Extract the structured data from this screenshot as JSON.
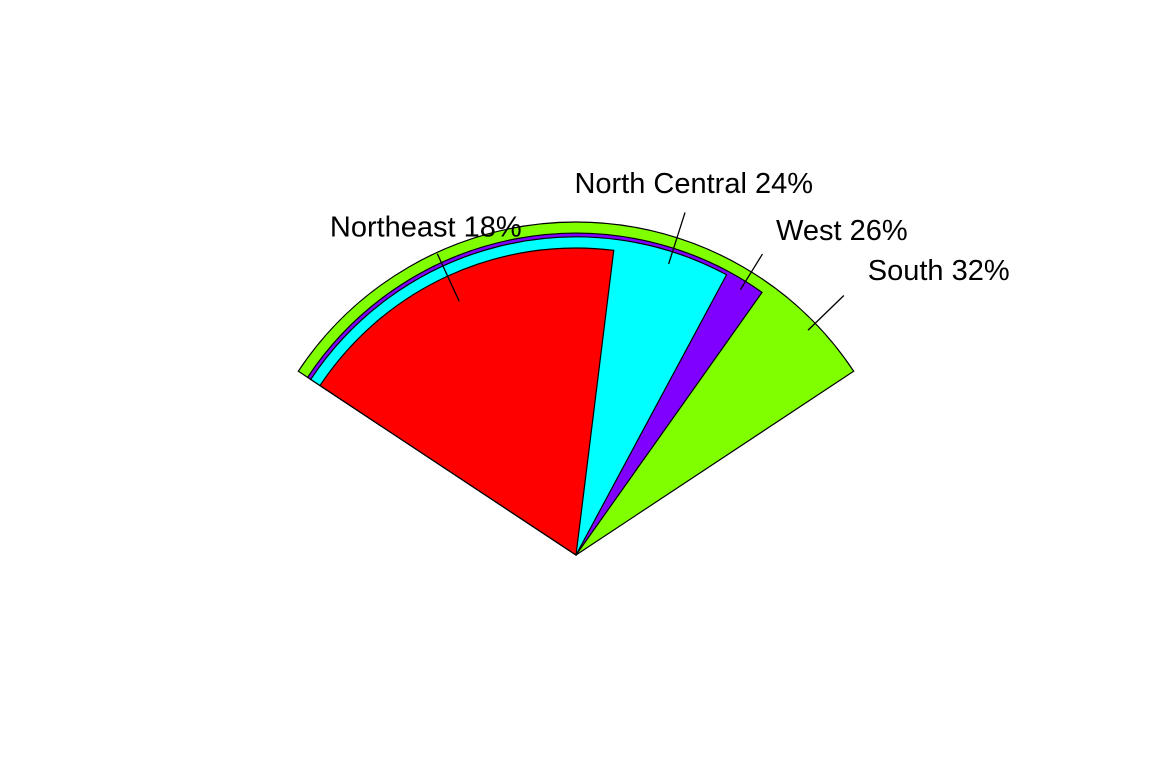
{
  "chart_data": {
    "type": "pie",
    "variant": "fan",
    "title": "",
    "slices": [
      {
        "label": "South 32%",
        "name": "South",
        "value": 32,
        "color": "#7FFF00"
      },
      {
        "label": "West 26%",
        "name": "West",
        "value": 26,
        "color": "#8000FF"
      },
      {
        "label": "North Central 24%",
        "name": "North Central",
        "value": 24,
        "color": "#00FFFF"
      },
      {
        "label": "Northeast 18%",
        "name": "Northeast",
        "value": 18,
        "color": "#FF0000"
      }
    ]
  }
}
